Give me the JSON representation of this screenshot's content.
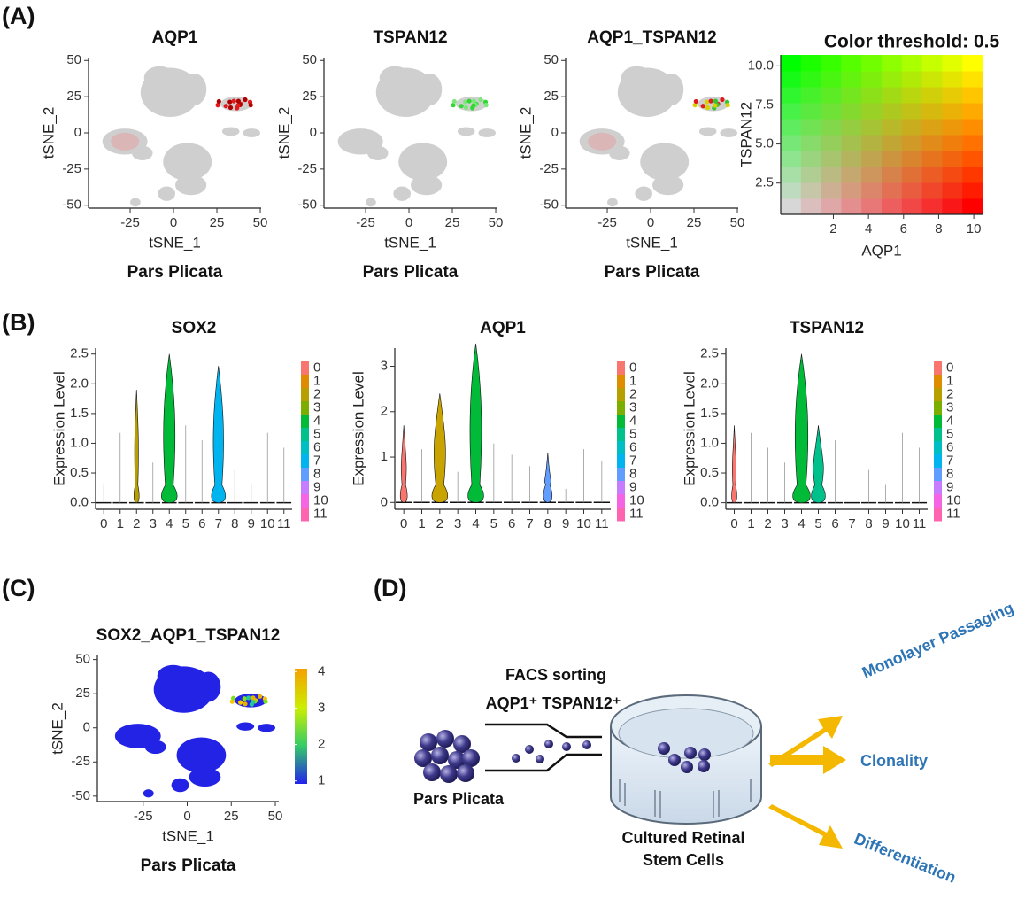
{
  "panel_a": {
    "label": "(A)",
    "plots": [
      {
        "title": "AQP1",
        "xlabel": "tSNE_1",
        "ylabel": "tSNE_2",
        "caption": "Pars Plicata",
        "xlim": [
          -49,
          50.5
        ],
        "ylim": [
          -52,
          52
        ],
        "xticks": [
          -25,
          0,
          25,
          50
        ],
        "yticks": [
          -50,
          -25,
          0,
          25,
          50
        ]
      },
      {
        "title": "TSPAN12",
        "xlabel": "tSNE_1",
        "ylabel": "tSNE_2",
        "caption": "Pars Plicata",
        "xlim": [
          -49,
          50.5
        ],
        "ylim": [
          -52,
          52
        ],
        "xticks": [
          -25,
          0,
          25,
          50
        ],
        "yticks": [
          -50,
          -25,
          0,
          25,
          50
        ]
      },
      {
        "title": "AQP1_TSPAN12",
        "xlabel": "tSNE_1",
        "ylabel": "tSNE_2",
        "caption": "Pars Plicata",
        "xlim": [
          -49,
          50.5
        ],
        "ylim": [
          -52,
          52
        ],
        "xticks": [
          -25,
          0,
          25,
          50
        ],
        "yticks": [
          -50,
          -25,
          0,
          25,
          50
        ]
      }
    ],
    "legend": {
      "title": "Color threshold: 0.5",
      "xlabel": "AQP1",
      "ylabel": "TSPAN12",
      "xlim": [
        -1,
        10.5
      ],
      "ylim": [
        0.5,
        10.7
      ],
      "xticks": [
        2,
        4,
        6,
        8,
        10
      ],
      "yticks": [
        2.5,
        {
          "value": 5,
          "label": "5.0"
        },
        7.5,
        {
          "value": 10,
          "label": "10.0"
        }
      ]
    }
  },
  "panel_b": {
    "label": "(B)",
    "categories": [
      "0",
      "1",
      "2",
      "3",
      "4",
      "5",
      "6",
      "7",
      "8",
      "9",
      "10",
      "11"
    ],
    "colors": [
      "#F8766D",
      "#DE8C00",
      "#B79F00",
      "#7CAE00",
      "#00BA38",
      "#00C08B",
      "#00BFC4",
      "#00B4F0",
      "#619CFF",
      "#C77CFF",
      "#F564E3",
      "#FF64B0"
    ],
    "plots": [
      {
        "title": "SOX2",
        "ylabel": "Expression Level",
        "ylim": [
          -0.11,
          2.6
        ],
        "yticks": [
          {
            "value": 0,
            "label": "0.0"
          },
          0.5,
          {
            "value": 1,
            "label": "1.0"
          },
          1.5,
          {
            "value": 2,
            "label": "2.0"
          },
          2.5
        ]
      },
      {
        "title": "AQP1",
        "ylabel": "Expression Level",
        "ylim": [
          -0.15,
          3.4
        ],
        "yticks": [
          0,
          1,
          2,
          3
        ]
      },
      {
        "title": "TSPAN12",
        "ylabel": "Expression Level",
        "ylim": [
          -0.11,
          2.6
        ],
        "yticks": [
          {
            "value": 0,
            "label": "0.0"
          },
          0.5,
          {
            "value": 1,
            "label": "1.0"
          },
          1.5,
          {
            "value": 2,
            "label": "2.0"
          },
          2.5
        ]
      }
    ]
  },
  "panel_c": {
    "label": "(C)",
    "title": "SOX2_AQP1_TSPAN12",
    "xlabel": "tSNE_1",
    "ylabel": "tSNE_2",
    "caption": "Pars Plicata",
    "xlim": [
      -51,
      52
    ],
    "ylim": [
      -54,
      53
    ],
    "xticks": [
      -25,
      0,
      25,
      50
    ],
    "yticks": [
      -50,
      -25,
      0,
      25,
      50
    ],
    "colorbar": {
      "lim": [
        0.92,
        4.08
      ],
      "ticks": [
        1,
        2,
        3,
        4
      ]
    }
  },
  "panel_d": {
    "label": "(D)",
    "sorting": "FACS sorting",
    "markers": "AQP1⁺ TSPAN12⁺",
    "source": "Pars Plicata",
    "culture": [
      "Cultured Retinal",
      "Stem Cells"
    ],
    "outcomes": [
      "Monolayer Passaging",
      "Clonality",
      "Differentiation"
    ]
  }
}
